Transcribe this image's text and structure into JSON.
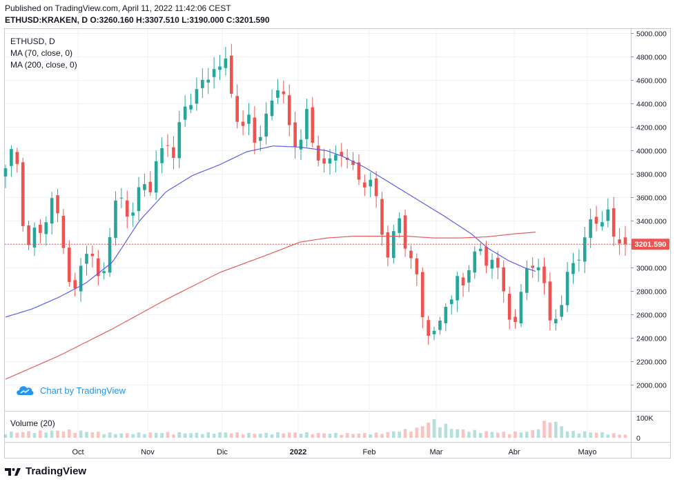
{
  "header": {
    "published": "Published on TradingView.com, April 11, 2022 11:42:06 CEST",
    "ohlc": "ETHUSD:KRAKEN, D  O:3260.160 H:3307.510 L:3190.000 C:3201.590"
  },
  "legend": {
    "symbol": "ETHUSD, D",
    "ma70": "MA (70, close, 0)",
    "ma200": "MA (200, close, 0)"
  },
  "volume_label": "Volume (20)",
  "watermark": "Chart by TradingView",
  "footer_brand": "TradingView",
  "colors": {
    "up": "#26a69a",
    "down": "#ef5350",
    "ma70": "#5b5ce6",
    "ma200": "#e85a5a",
    "grid": "#eef0f3",
    "price_label_bg": "#ef5350"
  },
  "chart_data": {
    "type": "candlestick",
    "symbol": "ETHUSD:KRAKEN",
    "interval": "D",
    "ylim": [
      1900,
      5000
    ],
    "y_ticks": [
      "5000.000",
      "4800.000",
      "4600.000",
      "4400.000",
      "4200.000",
      "4000.000",
      "3800.000",
      "3600.000",
      "3400.000",
      "3200.000",
      "3000.000",
      "2800.000",
      "2600.000",
      "2400.000",
      "2200.000",
      "2000.000"
    ],
    "y_tick_values": [
      5000,
      4800,
      4600,
      4400,
      4200,
      4000,
      3800,
      3600,
      3400,
      3200,
      3000,
      2800,
      2600,
      2400,
      2200,
      2000
    ],
    "x_labels": [
      "Oct",
      "Nov",
      "Dic",
      "2022",
      "Feb",
      "Mar",
      "Abr",
      "Mayo"
    ],
    "last_price_label": "3201.590",
    "last_price": 3201.59,
    "volume_ticks": [
      "100K",
      "0"
    ],
    "price_anchors": [
      [
        0,
        3820
      ],
      [
        1,
        3950
      ],
      [
        2,
        3900
      ],
      [
        3,
        3300
      ],
      [
        4,
        3150
      ],
      [
        5,
        3400
      ],
      [
        6,
        3250
      ],
      [
        7,
        3550
      ],
      [
        8,
        3500
      ],
      [
        9,
        3350
      ],
      [
        10,
        2950
      ],
      [
        11,
        2750
      ],
      [
        12,
        3000
      ],
      [
        13,
        3150
      ],
      [
        14,
        3050
      ],
      [
        15,
        2850
      ],
      [
        16,
        3100
      ],
      [
        17,
        3450
      ],
      [
        18,
        3600
      ],
      [
        19,
        3500
      ],
      [
        20,
        3400
      ],
      [
        21,
        3600
      ],
      [
        22,
        3750
      ],
      [
        23,
        3700
      ],
      [
        24,
        3900
      ],
      [
        25,
        3950
      ],
      [
        26,
        4050
      ],
      [
        27,
        3950
      ],
      [
        28,
        4300
      ],
      [
        29,
        4400
      ],
      [
        30,
        4500
      ],
      [
        31,
        4600
      ],
      [
        32,
        4450
      ],
      [
        33,
        4750
      ],
      [
        34,
        4700
      ],
      [
        35,
        4800
      ],
      [
        36,
        4550
      ],
      [
        37,
        4300
      ],
      [
        38,
        4150
      ],
      [
        39,
        4250
      ],
      [
        40,
        4050
      ],
      [
        41,
        4200
      ],
      [
        42,
        4350
      ],
      [
        43,
        4500
      ],
      [
        44,
        4650
      ],
      [
        45,
        4200
      ],
      [
        46,
        4000
      ],
      [
        47,
        4100
      ],
      [
        48,
        4400
      ],
      [
        49,
        4050
      ],
      [
        50,
        3950
      ],
      [
        51,
        3900
      ],
      [
        52,
        3850
      ],
      [
        53,
        3950
      ],
      [
        54,
        4050
      ],
      [
        55,
        3900
      ],
      [
        56,
        3800
      ],
      [
        57,
        3700
      ],
      [
        58,
        3750
      ],
      [
        59,
        3600
      ],
      [
        60,
        3350
      ],
      [
        61,
        3150
      ],
      [
        62,
        3300
      ],
      [
        63,
        3400
      ],
      [
        64,
        3150
      ],
      [
        65,
        3050
      ],
      [
        66,
        2800
      ],
      [
        67,
        2450
      ],
      [
        68,
        2550
      ],
      [
        69,
        2400
      ],
      [
        70,
        2650
      ],
      [
        71,
        2700
      ],
      [
        72,
        2900
      ],
      [
        73,
        2800
      ],
      [
        74,
        3050
      ],
      [
        75,
        3200
      ],
      [
        76,
        3100
      ],
      [
        77,
        2950
      ],
      [
        78,
        3150
      ],
      [
        79,
        2900
      ],
      [
        80,
        2650
      ],
      [
        81,
        2550
      ],
      [
        82,
        2700
      ],
      [
        83,
        2900
      ],
      [
        84,
        3000
      ],
      [
        85,
        3050
      ],
      [
        86,
        2850
      ],
      [
        87,
        2550
      ],
      [
        88,
        2650
      ],
      [
        89,
        2700
      ],
      [
        90,
        2950
      ],
      [
        91,
        3050
      ],
      [
        92,
        3150
      ],
      [
        93,
        3350
      ],
      [
        94,
        3450
      ],
      [
        95,
        3400
      ],
      [
        96,
        3500
      ],
      [
        97,
        3200
      ],
      [
        98,
        3250
      ],
      [
        99,
        3201.59
      ]
    ],
    "ma70_anchors": [
      [
        0,
        2580
      ],
      [
        5,
        2650
      ],
      [
        10,
        2750
      ],
      [
        15,
        2870
      ],
      [
        20,
        3050
      ],
      [
        25,
        3400
      ],
      [
        30,
        3650
      ],
      [
        35,
        3790
      ],
      [
        40,
        3880
      ],
      [
        45,
        3990
      ],
      [
        50,
        4040
      ],
      [
        55,
        4030
      ],
      [
        60,
        4000
      ],
      [
        63,
        3950
      ],
      [
        67,
        3860
      ],
      [
        72,
        3720
      ],
      [
        77,
        3580
      ],
      [
        82,
        3440
      ],
      [
        87,
        3290
      ],
      [
        90,
        3170
      ],
      [
        94,
        3060
      ],
      [
        97,
        3000
      ],
      [
        99,
        2970
      ]
    ],
    "ma200_anchors": [
      [
        0,
        2050
      ],
      [
        10,
        2250
      ],
      [
        20,
        2480
      ],
      [
        30,
        2730
      ],
      [
        40,
        2960
      ],
      [
        50,
        3130
      ],
      [
        55,
        3220
      ],
      [
        60,
        3255
      ],
      [
        65,
        3270
      ],
      [
        70,
        3270
      ],
      [
        75,
        3270
      ],
      [
        80,
        3255
      ],
      [
        85,
        3255
      ],
      [
        90,
        3265
      ],
      [
        95,
        3290
      ],
      [
        99,
        3305
      ]
    ],
    "volume_anchors": [
      [
        0,
        25
      ],
      [
        10,
        35
      ],
      [
        18,
        20
      ],
      [
        25,
        25
      ],
      [
        30,
        22
      ],
      [
        35,
        25
      ],
      [
        40,
        20
      ],
      [
        45,
        25
      ],
      [
        50,
        22
      ],
      [
        55,
        20
      ],
      [
        60,
        22
      ],
      [
        66,
        45
      ],
      [
        68,
        85
      ],
      [
        72,
        40
      ],
      [
        76,
        30
      ],
      [
        80,
        25
      ],
      [
        84,
        30
      ],
      [
        87,
        90
      ],
      [
        90,
        30
      ],
      [
        95,
        25
      ],
      [
        99,
        15
      ]
    ]
  }
}
